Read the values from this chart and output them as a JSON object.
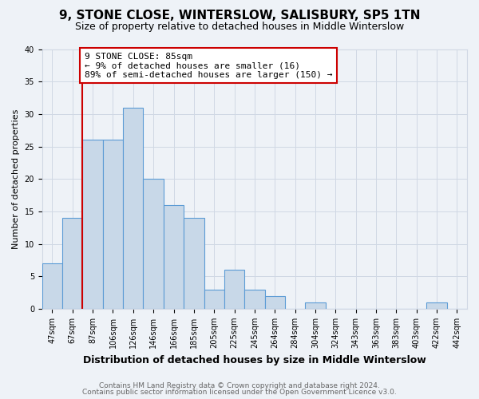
{
  "title1": "9, STONE CLOSE, WINTERSLOW, SALISBURY, SP5 1TN",
  "title2": "Size of property relative to detached houses in Middle Winterslow",
  "xlabel": "Distribution of detached houses by size in Middle Winterslow",
  "ylabel": "Number of detached properties",
  "bar_labels": [
    "47sqm",
    "67sqm",
    "87sqm",
    "106sqm",
    "126sqm",
    "146sqm",
    "166sqm",
    "185sqm",
    "205sqm",
    "225sqm",
    "245sqm",
    "264sqm",
    "284sqm",
    "304sqm",
    "324sqm",
    "343sqm",
    "363sqm",
    "383sqm",
    "403sqm",
    "422sqm",
    "442sqm"
  ],
  "bar_values": [
    7,
    14,
    26,
    26,
    31,
    20,
    16,
    14,
    3,
    6,
    3,
    2,
    0,
    1,
    0,
    0,
    0,
    0,
    0,
    1,
    0
  ],
  "bar_color": "#c8d8e8",
  "bar_edge_color": "#5b9bd5",
  "vline_color": "#cc0000",
  "annotation_text": "9 STONE CLOSE: 85sqm\n← 9% of detached houses are smaller (16)\n89% of semi-detached houses are larger (150) →",
  "annotation_box_color": "#ffffff",
  "annotation_box_edge": "#cc0000",
  "ylim": [
    0,
    40
  ],
  "yticks": [
    0,
    5,
    10,
    15,
    20,
    25,
    30,
    35,
    40
  ],
  "footer1": "Contains HM Land Registry data © Crown copyright and database right 2024.",
  "footer2": "Contains public sector information licensed under the Open Government Licence v3.0.",
  "bg_color": "#eef2f7",
  "plot_bg_color": "#eef2f7",
  "grid_color": "#d0d8e4",
  "title1_fontsize": 11,
  "title2_fontsize": 9,
  "xlabel_fontsize": 9,
  "ylabel_fontsize": 8,
  "tick_fontsize": 7,
  "footer_fontsize": 6.5
}
